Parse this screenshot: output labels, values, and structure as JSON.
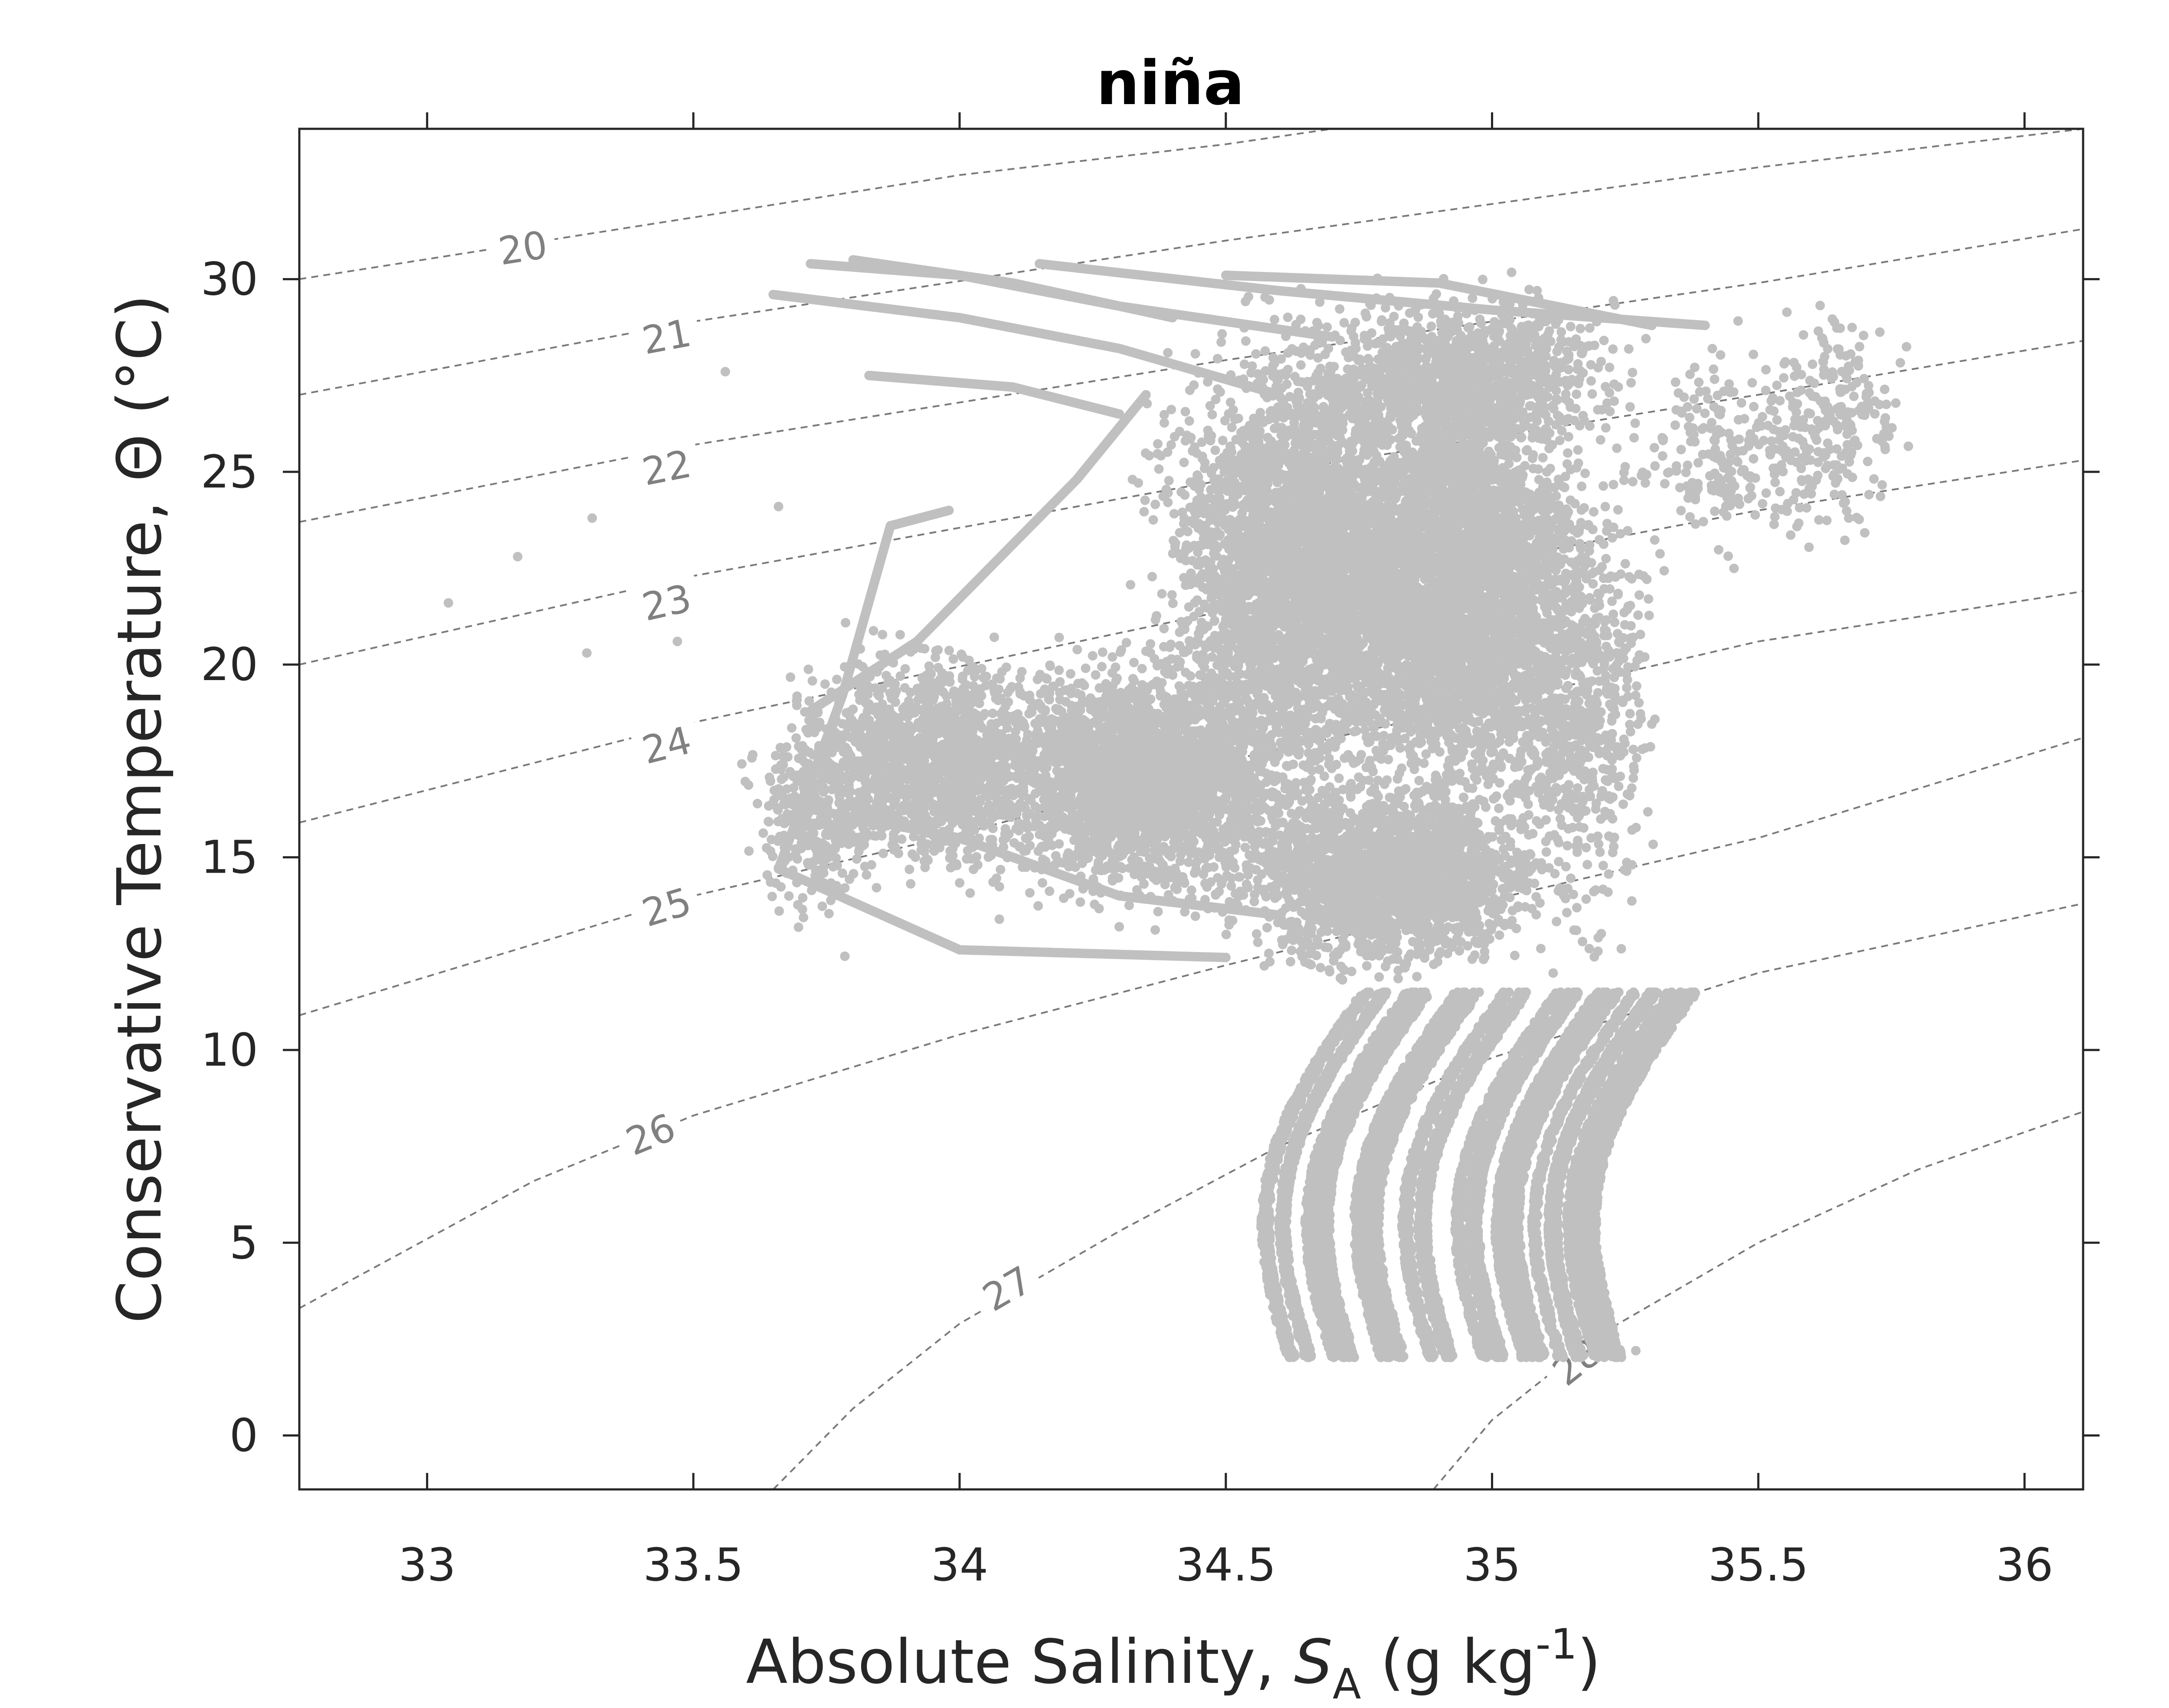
{
  "chart_data": {
    "type": "scatter",
    "title": "niña",
    "xlabel": {
      "main": "Absolute Salinity, ",
      "symbol": "S",
      "sub": "A",
      "unit_open": " (g kg",
      "sup": "-1",
      "unit_close": ")"
    },
    "ylabel": "Conservative Temperature,  Θ (°C)",
    "xlim": [
      32.76,
      36.11
    ],
    "ylim": [
      -1.4,
      33.9
    ],
    "xticks": [
      33,
      33.5,
      34,
      34.5,
      35,
      35.5,
      36
    ],
    "xtick_labels": [
      "33",
      "33.5",
      "34",
      "34.5",
      "35",
      "35.5",
      "36"
    ],
    "yticks": [
      0,
      5,
      10,
      15,
      20,
      25,
      30
    ],
    "ytick_labels": [
      "0",
      "5",
      "10",
      "15",
      "20",
      "25",
      "30"
    ],
    "grid": false,
    "colors": {
      "points": "#c0c0c0",
      "isopycnal": "#7a7a7a",
      "iso_label": "#808080",
      "axis": "#262626"
    },
    "isopycnals": [
      {
        "label": "20",
        "points": [
          [
            32.76,
            30.0
          ],
          [
            33.5,
            31.6
          ],
          [
            34.0,
            32.7
          ],
          [
            34.5,
            33.5
          ],
          [
            34.7,
            33.9
          ]
        ],
        "label_at": [
          33.18,
          30.8
        ]
      },
      {
        "label": "21",
        "points": [
          [
            32.76,
            27.0
          ],
          [
            33.5,
            28.9
          ],
          [
            34.5,
            31.0
          ],
          [
            35.5,
            32.9
          ],
          [
            36.11,
            33.9
          ]
        ],
        "label_at": [
          33.45,
          28.5
        ]
      },
      {
        "label": "22",
        "points": [
          [
            32.76,
            23.7
          ],
          [
            33.5,
            25.7
          ],
          [
            34.5,
            27.9
          ],
          [
            35.5,
            29.9
          ],
          [
            36.11,
            31.3
          ]
        ],
        "label_at": [
          33.45,
          25.1
        ]
      },
      {
        "label": "23",
        "points": [
          [
            32.76,
            20.0
          ],
          [
            33.5,
            22.3
          ],
          [
            34.5,
            24.8
          ],
          [
            35.5,
            27.0
          ],
          [
            36.11,
            28.4
          ]
        ],
        "label_at": [
          33.45,
          21.6
        ]
      },
      {
        "label": "24",
        "points": [
          [
            32.76,
            15.9
          ],
          [
            33.5,
            18.5
          ],
          [
            34.5,
            21.4
          ],
          [
            35.5,
            24.0
          ],
          [
            36.11,
            25.3
          ]
        ],
        "label_at": [
          33.45,
          17.9
        ]
      },
      {
        "label": "25",
        "points": [
          [
            32.76,
            10.9
          ],
          [
            33.5,
            14.0
          ],
          [
            34.0,
            15.6
          ],
          [
            34.5,
            17.5
          ],
          [
            35.0,
            19.0
          ],
          [
            35.5,
            20.6
          ],
          [
            36.11,
            21.9
          ]
        ],
        "label_at": [
          33.45,
          13.7
        ]
      },
      {
        "label": "26",
        "points": [
          [
            32.76,
            3.3
          ],
          [
            33.2,
            6.6
          ],
          [
            33.5,
            8.3
          ],
          [
            34.0,
            10.4
          ],
          [
            34.5,
            12.2
          ],
          [
            35.0,
            13.9
          ],
          [
            35.5,
            15.5
          ],
          [
            36.11,
            18.1
          ]
        ],
        "label_at": [
          33.42,
          7.8
        ]
      },
      {
        "label": "27",
        "points": [
          [
            33.65,
            -1.4
          ],
          [
            33.8,
            0.7
          ],
          [
            34.0,
            2.9
          ],
          [
            34.3,
            5.3
          ],
          [
            34.6,
            7.5
          ],
          [
            35.0,
            9.8
          ],
          [
            35.5,
            12.0
          ],
          [
            36.11,
            13.8
          ]
        ],
        "label_at": [
          34.09,
          3.8
        ]
      },
      {
        "label": "28",
        "points": [
          [
            34.89,
            -1.4
          ],
          [
            35.0,
            0.4
          ],
          [
            35.2,
            2.6
          ],
          [
            35.5,
            5.0
          ],
          [
            35.8,
            6.9
          ],
          [
            36.11,
            8.4
          ]
        ],
        "label_at": [
          35.16,
          1.9
        ]
      }
    ],
    "series": [
      {
        "clusters": [
          {
            "center": [
              34.65,
              22.5
            ],
            "spread": [
              0.2,
              4.5
            ],
            "n": 4000
          },
          {
            "center": [
              34.95,
              22.0
            ],
            "spread": [
              0.17,
              4.3
            ],
            "n": 3200
          },
          {
            "center": [
              34.35,
              17.0
            ],
            "spread": [
              0.22,
              2.4
            ],
            "n": 2600
          },
          {
            "center": [
              34.8,
              14.5
            ],
            "spread": [
              0.22,
              1.8
            ],
            "n": 2200
          },
          {
            "center": [
              33.95,
              17.5
            ],
            "spread": [
              0.2,
              2.2
            ],
            "n": 1500
          },
          {
            "center": [
              35.15,
              19.0
            ],
            "spread": [
              0.12,
              4.5
            ],
            "n": 900
          },
          {
            "center": [
              34.95,
              27.5
            ],
            "spread": [
              0.22,
              1.6
            ],
            "n": 1100
          },
          {
            "center": [
              35.45,
              25.5
            ],
            "spread": [
              0.15,
              2.0
            ],
            "n": 250
          },
          {
            "center": [
              35.65,
              26.5
            ],
            "spread": [
              0.1,
              2.3
            ],
            "n": 200
          },
          {
            "center": [
              33.72,
              16.0
            ],
            "spread": [
              0.1,
              2.0
            ],
            "n": 300
          }
        ],
        "deep_curves": {
          "offsets": [
            34.64,
            34.72,
            34.82,
            34.9,
            35.0,
            35.08,
            35.15,
            35.22
          ],
          "t_top": 11.5,
          "t_bottom": 2.0
        },
        "tracks": [
          [
            [
              33.65,
              29.6
            ],
            [
              34.0,
              29.0
            ],
            [
              34.3,
              28.2
            ],
            [
              34.6,
              27.0
            ]
          ],
          [
            [
              33.72,
              30.4
            ],
            [
              34.0,
              30.1
            ],
            [
              34.3,
              29.3
            ],
            [
              34.7,
              28.5
            ]
          ],
          [
            [
              33.8,
              30.5
            ],
            [
              34.1,
              29.9
            ],
            [
              34.4,
              29.0
            ]
          ],
          [
            [
              34.15,
              30.4
            ],
            [
              34.6,
              29.7
            ],
            [
              35.0,
              29.2
            ],
            [
              35.4,
              28.8
            ]
          ],
          [
            [
              34.5,
              30.1
            ],
            [
              34.9,
              29.9
            ],
            [
              35.3,
              28.8
            ]
          ],
          [
            [
              33.83,
              27.5
            ],
            [
              34.1,
              27.2
            ],
            [
              34.3,
              26.5
            ]
          ],
          [
            [
              33.98,
              24.0
            ],
            [
              33.87,
              23.6
            ],
            [
              33.78,
              19.2
            ],
            [
              33.66,
              14.7
            ],
            [
              34.0,
              12.6
            ],
            [
              34.5,
              12.4
            ]
          ],
          [
            [
              33.72,
              18.8
            ],
            [
              33.92,
              20.6
            ],
            [
              34.22,
              24.8
            ],
            [
              34.35,
              27.0
            ]
          ],
          [
            [
              33.7,
              16.3
            ],
            [
              34.0,
              15.5
            ],
            [
              34.3,
              14.0
            ],
            [
              34.6,
              13.5
            ]
          ]
        ],
        "outliers": [
          [
            33.04,
            21.6
          ],
          [
            33.17,
            22.8
          ],
          [
            33.3,
            20.3
          ],
          [
            33.31,
            23.8
          ],
          [
            33.47,
            20.6
          ],
          [
            33.56,
            27.6
          ],
          [
            33.66,
            24.1
          ],
          [
            35.27,
            2.2
          ]
        ]
      }
    ]
  }
}
